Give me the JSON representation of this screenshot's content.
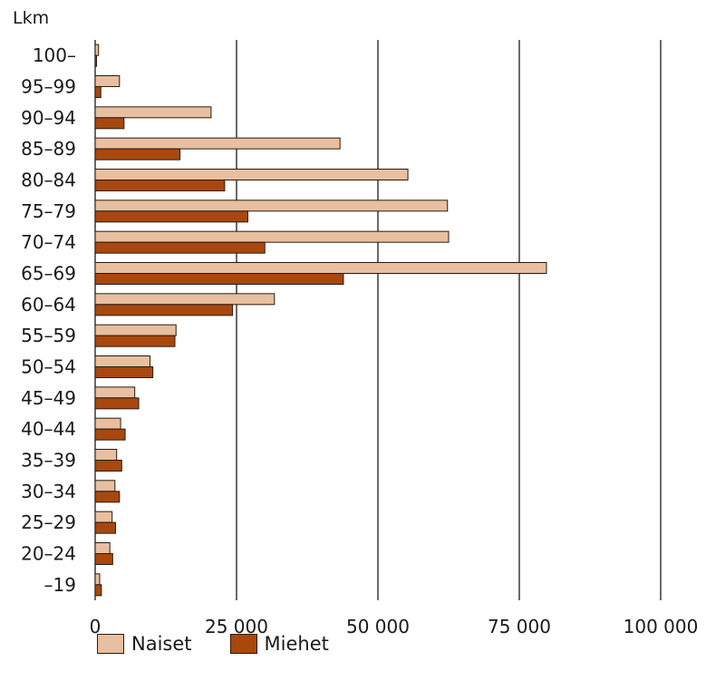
{
  "chart_data": {
    "type": "bar",
    "orientation": "horizontal",
    "unit_label": "Lkm",
    "categories": [
      "100–",
      "95–99",
      "90–94",
      "85–89",
      "80–84",
      "75–79",
      "70–74",
      "65–69",
      "60–64",
      "55–59",
      "50–54",
      "45–49",
      "40–44",
      "35–39",
      "30–34",
      "25–29",
      "20–24",
      "–19"
    ],
    "series": [
      {
        "name": "Naiset",
        "color": "#e8bfa0",
        "values": [
          600,
          4300,
          20500,
          43300,
          55300,
          62300,
          62500,
          79800,
          31700,
          14300,
          9700,
          7000,
          4500,
          3800,
          3500,
          3000,
          2600,
          800
        ]
      },
      {
        "name": "Miehet",
        "color": "#a8480f",
        "values": [
          100,
          1000,
          5100,
          15000,
          22900,
          27000,
          30000,
          43900,
          24300,
          14100,
          10200,
          7700,
          5300,
          4700,
          4300,
          3600,
          3100,
          1100
        ]
      }
    ],
    "xlim": [
      0,
      100000
    ],
    "xticks": [
      0,
      25000,
      50000,
      75000,
      100000
    ],
    "xtick_labels": [
      "0",
      "25 000",
      "50 000",
      "75 000",
      "100 000"
    ],
    "grid": "vertical",
    "legend_position": "bottom"
  }
}
